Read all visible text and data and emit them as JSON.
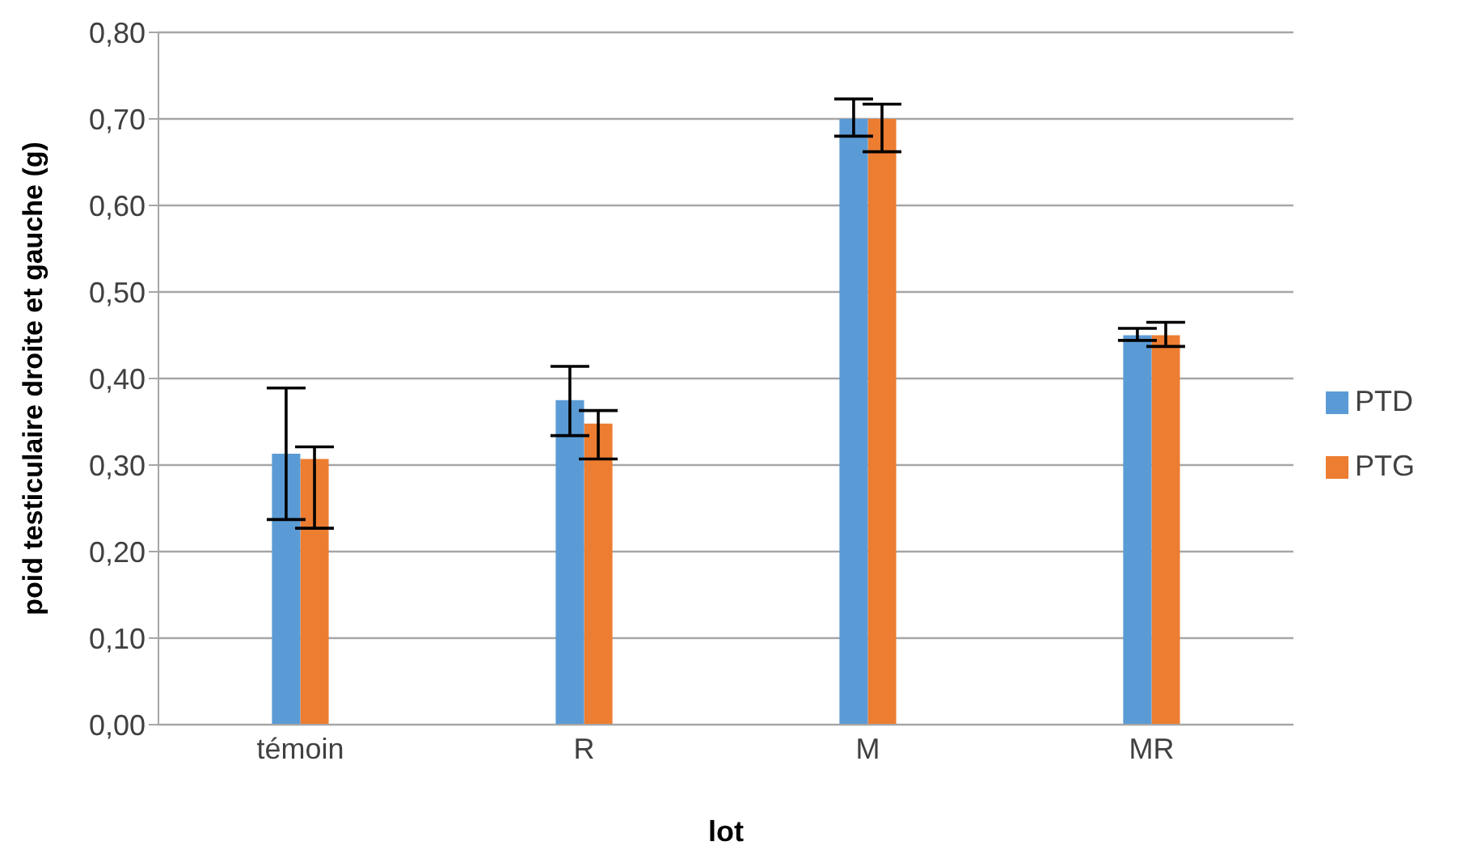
{
  "chart_data": {
    "type": "bar",
    "xlabel": "lot",
    "ylabel": "poid testiculaire droite et gauche (g)",
    "categories": [
      "témoin",
      "R",
      "M",
      "MR"
    ],
    "series": [
      {
        "name": "PTD",
        "color": "#5b9bd5",
        "values": [
          0.313,
          0.375,
          0.7,
          0.45
        ],
        "errors": [
          [
            0.237,
            0.389
          ],
          [
            0.334,
            0.414
          ],
          [
            0.68,
            0.723
          ],
          [
            0.444,
            0.458
          ]
        ]
      },
      {
        "name": "PTG",
        "color": "#ed7d31",
        "values": [
          0.307,
          0.348,
          0.7,
          0.45
        ],
        "errors": [
          [
            0.227,
            0.321
          ],
          [
            0.307,
            0.363
          ],
          [
            0.662,
            0.717
          ],
          [
            0.437,
            0.465
          ]
        ]
      }
    ],
    "ylim": [
      0,
      0.8
    ],
    "yticks": [
      {
        "value": 0,
        "label": "0,00"
      },
      {
        "value": 0.1,
        "label": "0,10"
      },
      {
        "value": 0.2,
        "label": "0,20"
      },
      {
        "value": 0.3,
        "label": "0,30"
      },
      {
        "value": 0.4,
        "label": "0,40"
      },
      {
        "value": 0.5,
        "label": "0,50"
      },
      {
        "value": 0.6,
        "label": "0,60"
      },
      {
        "value": 0.7,
        "label": "0,70"
      },
      {
        "value": 0.8,
        "label": "0,80"
      }
    ],
    "grid": "y",
    "legend": "right"
  }
}
